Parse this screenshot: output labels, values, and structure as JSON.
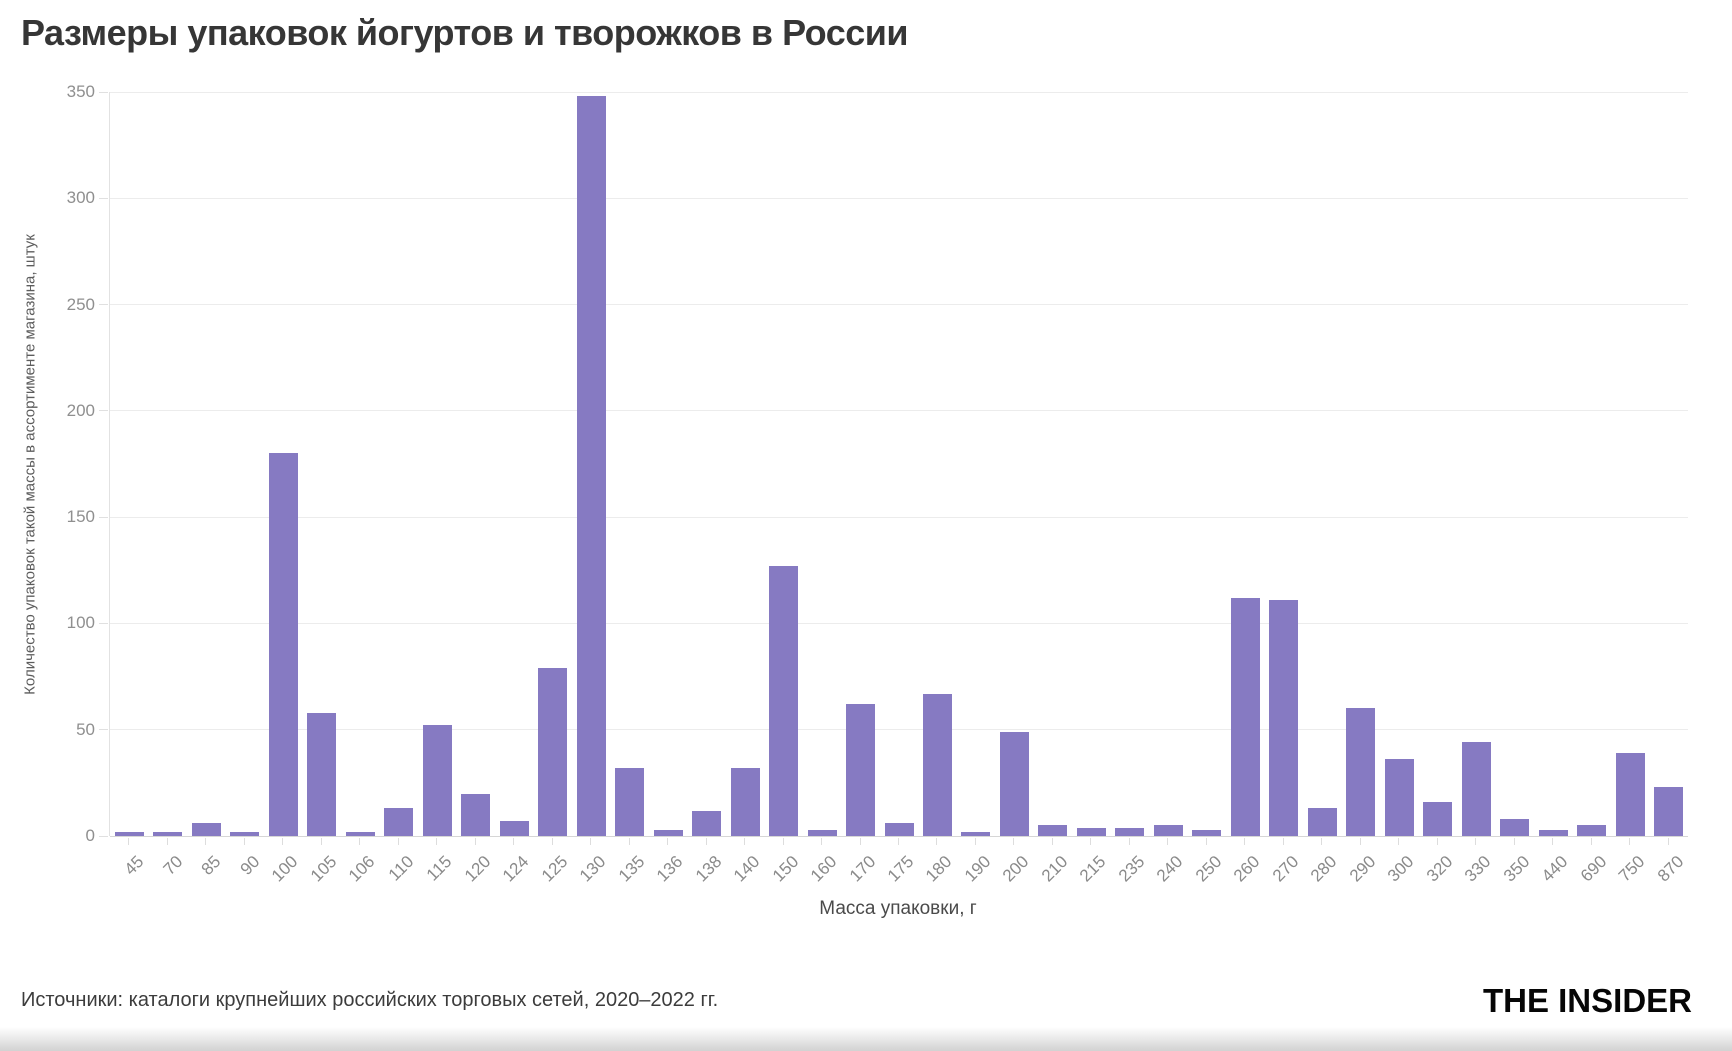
{
  "chart_data": {
    "type": "bar",
    "title": "Размеры упаковок йогуртов и творожков в России",
    "xlabel": "Масса упаковки, г",
    "ylabel": "Количество упаковок такой массы в ассортименте магазина, штук",
    "categories": [
      "45",
      "70",
      "85",
      "90",
      "100",
      "105",
      "106",
      "110",
      "115",
      "120",
      "124",
      "125",
      "130",
      "135",
      "136",
      "138",
      "140",
      "150",
      "160",
      "170",
      "175",
      "180",
      "190",
      "200",
      "210",
      "215",
      "235",
      "240",
      "250",
      "260",
      "270",
      "280",
      "290",
      "300",
      "320",
      "330",
      "350",
      "440",
      "690",
      "750",
      "870"
    ],
    "values": [
      2,
      2,
      6,
      2,
      180,
      58,
      2,
      13,
      52,
      20,
      7,
      79,
      348,
      32,
      3,
      12,
      32,
      127,
      3,
      62,
      6,
      67,
      2,
      49,
      5,
      4,
      4,
      5,
      3,
      112,
      111,
      13,
      60,
      36,
      16,
      44,
      8,
      3,
      5,
      39,
      23
    ],
    "ylim": [
      0,
      350
    ],
    "y_tick_step": 50,
    "grid": true,
    "legend": "none",
    "bar_color": "#867AC2"
  },
  "footer": {
    "source": "Источники: каталоги крупнейших российских торговых сетей, 2020–2022 гг.",
    "logo": "THE INSIDER"
  }
}
